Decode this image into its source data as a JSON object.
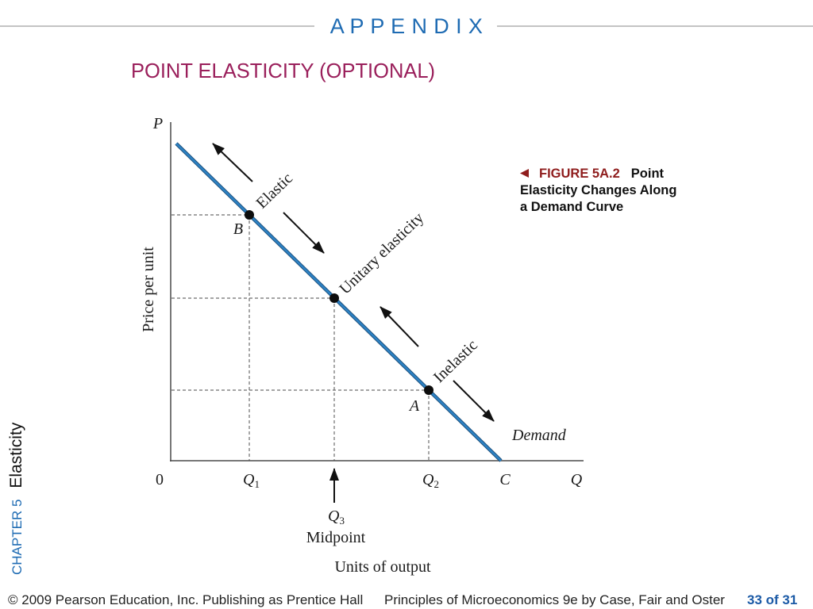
{
  "colors": {
    "accent_blue": "#1e6bb3",
    "title": "#9a1f5b",
    "figure_label": "#8f1d1d",
    "demand_curve": "#2d82c4",
    "page_number": "#1b5aa6"
  },
  "header": {
    "title": "A P P E N D I X"
  },
  "slide": {
    "title": "POINT ELASTICITY (OPTIONAL)"
  },
  "sidebar": {
    "chapter": "CHAPTER 5",
    "topic": "Elasticity"
  },
  "caption": {
    "pointer_icon": "left-pointer-icon",
    "figure_number": "FIGURE 5A.2",
    "text": "Point Elasticity Changes Along a Demand Curve"
  },
  "diagram": {
    "y_axis": {
      "symbol": "P",
      "label": "Price per unit"
    },
    "x_axis": {
      "origin": "0",
      "symbol": "Q",
      "label": "Units of output",
      "q1": {
        "main": "Q",
        "sub": "1"
      },
      "q2": {
        "main": "Q",
        "sub": "2"
      },
      "q3": {
        "main": "Q",
        "sub": "3"
      },
      "c": "C",
      "midpoint": "Midpoint"
    },
    "curve_label": "Demand",
    "points": {
      "b": "B",
      "a": "A"
    },
    "regions": {
      "elastic": "Elastic",
      "unitary": "Unitary elasticity",
      "inelastic": "Inelastic"
    }
  },
  "footer": {
    "copyright": "© 2009 Pearson Education, Inc. Publishing as Prentice Hall",
    "book": "Principles of Microeconomics 9e by Case, Fair and Oster",
    "page": "33 of 31"
  }
}
